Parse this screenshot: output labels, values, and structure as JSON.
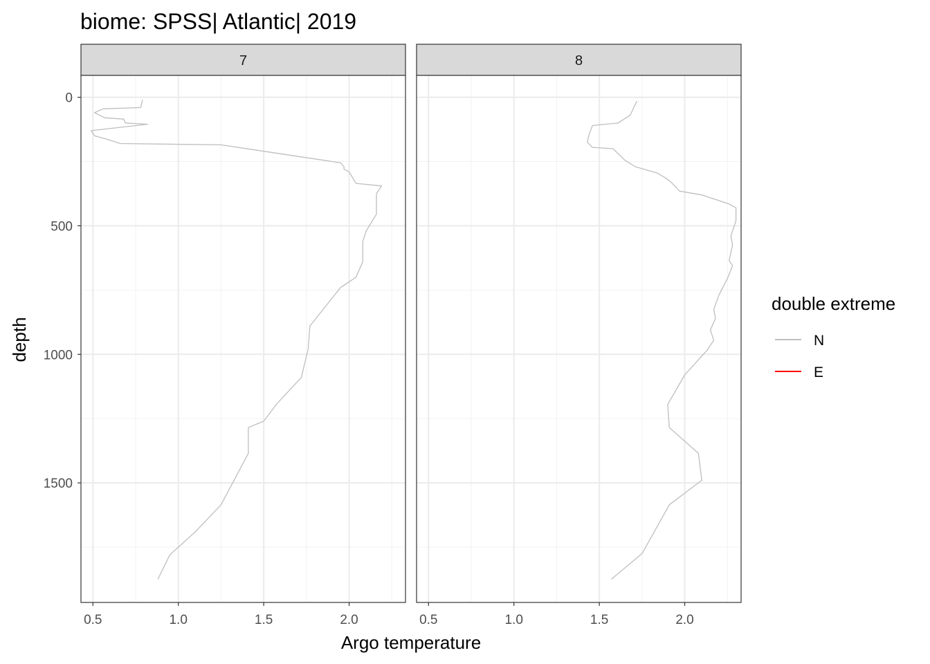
{
  "chart_data": {
    "type": "line",
    "title": "biome: SPSS| Atlantic| 2019",
    "xlabel": "Argo temperature",
    "ylabel": "depth",
    "xlim": [
      0.43,
      2.33
    ],
    "ylim": [
      -85,
      1965
    ],
    "y_reversed": true,
    "x_ticks": [
      "0.5",
      "1.0",
      "1.5",
      "2.0"
    ],
    "x_tick_values": [
      0.5,
      1.0,
      1.5,
      2.0
    ],
    "y_ticks": [
      "0",
      "500",
      "1000",
      "1500"
    ],
    "y_tick_values": [
      0,
      500,
      1000,
      1500
    ],
    "grid": true,
    "legend": {
      "title": "double extreme",
      "position": "right",
      "entries": [
        {
          "label": "N",
          "color": "#bebebe"
        },
        {
          "label": "E",
          "color": "#ff0000"
        }
      ]
    },
    "panels": [
      {
        "strip": "7",
        "series": [
          {
            "legend_key": "N",
            "color": "#bebebe",
            "points": [
              [
                0.79,
                10
              ],
              [
                0.78,
                40
              ],
              [
                0.56,
                45
              ],
              [
                0.51,
                60
              ],
              [
                0.57,
                80
              ],
              [
                0.68,
                85
              ],
              [
                0.69,
                100
              ],
              [
                0.82,
                105
              ],
              [
                0.49,
                130
              ],
              [
                0.51,
                150
              ],
              [
                0.59,
                165
              ],
              [
                0.66,
                180
              ],
              [
                1.25,
                185
              ],
              [
                1.5,
                210
              ],
              [
                1.8,
                240
              ],
              [
                1.95,
                255
              ],
              [
                1.97,
                270
              ],
              [
                1.97,
                280
              ],
              [
                2.0,
                290
              ],
              [
                2.04,
                335
              ],
              [
                2.19,
                345
              ],
              [
                2.16,
                375
              ],
              [
                2.16,
                455
              ],
              [
                2.1,
                520
              ],
              [
                2.08,
                560
              ],
              [
                2.08,
                640
              ],
              [
                2.04,
                700
              ],
              [
                1.95,
                740
              ],
              [
                1.86,
                815
              ],
              [
                1.77,
                890
              ],
              [
                1.76,
                980
              ],
              [
                1.72,
                1090
              ],
              [
                1.58,
                1190
              ],
              [
                1.5,
                1260
              ],
              [
                1.41,
                1285
              ],
              [
                1.41,
                1385
              ],
              [
                1.25,
                1585
              ],
              [
                1.1,
                1690
              ],
              [
                0.95,
                1780
              ],
              [
                0.88,
                1875
              ]
            ]
          }
        ]
      },
      {
        "strip": "8",
        "series": [
          {
            "legend_key": "N",
            "color": "#bebebe",
            "points": [
              [
                1.72,
                15
              ],
              [
                1.68,
                70
              ],
              [
                1.61,
                100
              ],
              [
                1.46,
                110
              ],
              [
                1.44,
                145
              ],
              [
                1.43,
                175
              ],
              [
                1.46,
                195
              ],
              [
                1.58,
                200
              ],
              [
                1.65,
                245
              ],
              [
                1.71,
                270
              ],
              [
                1.84,
                295
              ],
              [
                1.89,
                315
              ],
              [
                1.92,
                330
              ],
              [
                1.97,
                365
              ],
              [
                2.1,
                380
              ],
              [
                2.26,
                415
              ],
              [
                2.3,
                430
              ],
              [
                2.3,
                480
              ],
              [
                2.27,
                540
              ],
              [
                2.28,
                575
              ],
              [
                2.26,
                635
              ],
              [
                2.28,
                655
              ],
              [
                2.25,
                705
              ],
              [
                2.2,
                770
              ],
              [
                2.17,
                825
              ],
              [
                2.18,
                860
              ],
              [
                2.15,
                905
              ],
              [
                2.17,
                945
              ],
              [
                2.13,
                985
              ],
              [
                2.0,
                1080
              ],
              [
                1.9,
                1195
              ],
              [
                1.91,
                1285
              ],
              [
                2.08,
                1385
              ],
              [
                2.1,
                1490
              ],
              [
                1.91,
                1585
              ],
              [
                1.83,
                1680
              ],
              [
                1.75,
                1775
              ],
              [
                1.57,
                1875
              ]
            ]
          }
        ]
      }
    ]
  }
}
